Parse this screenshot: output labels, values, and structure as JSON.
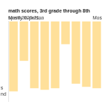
{
  "chart_data": {
    "type": "bar",
    "title": "math scores, 3rd grade through 8th",
    "subtitle": "spent 2020-21...",
    "annotations": [
      "Mostly in-person",
      "Mos",
      "s",
      "nd"
    ],
    "categories": [
      null,
      null,
      null,
      null,
      null,
      null,
      null,
      null,
      null
    ],
    "values": [
      0.92,
      0.52,
      0.88,
      0.9,
      0.88,
      0.3,
      0.82,
      0.86,
      0.88
    ],
    "color": "#FFE09A",
    "ylim": [
      0,
      1.05
    ],
    "grid": false,
    "tick_labels": false
  }
}
